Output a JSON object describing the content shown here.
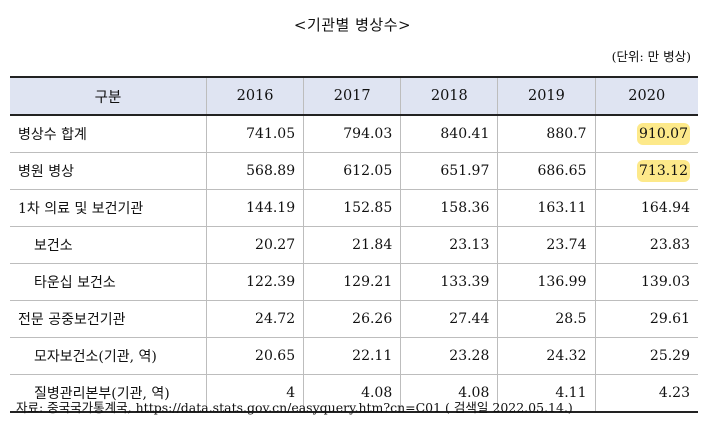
{
  "title": "<기관별 병상수>",
  "unit": "(단위: 만 병상)",
  "table": {
    "header_label": "구분",
    "years": [
      "2016",
      "2017",
      "2018",
      "2019",
      "2020"
    ],
    "rows": [
      {
        "label": "병상수 합계",
        "indent": false,
        "values": [
          "741.05",
          "794.03",
          "840.41",
          "880.7",
          "910.07"
        ],
        "highlight_last": true
      },
      {
        "label": "병원 병상",
        "indent": false,
        "values": [
          "568.89",
          "612.05",
          "651.97",
          "686.65",
          "713.12"
        ],
        "highlight_last": true
      },
      {
        "label": "1차 의료 및 보건기관",
        "indent": false,
        "values": [
          "144.19",
          "152.85",
          "158.36",
          "163.11",
          "164.94"
        ],
        "highlight_last": false
      },
      {
        "label": "보건소",
        "indent": true,
        "values": [
          "20.27",
          "21.84",
          "23.13",
          "23.74",
          "23.83"
        ],
        "highlight_last": false
      },
      {
        "label": "타운십 보건소",
        "indent": true,
        "values": [
          "122.39",
          "129.21",
          "133.39",
          "136.99",
          "139.03"
        ],
        "highlight_last": false
      },
      {
        "label": "전문 공중보건기관",
        "indent": false,
        "values": [
          "24.72",
          "26.26",
          "27.44",
          "28.5",
          "29.61"
        ],
        "highlight_last": false
      },
      {
        "label": "모자보건소(기관, 역)",
        "indent": true,
        "values": [
          "20.65",
          "22.11",
          "23.28",
          "24.32",
          "25.29"
        ],
        "highlight_last": false
      },
      {
        "label": "질병관리본부(기관, 역)",
        "indent": true,
        "values": [
          "4",
          "4.08",
          "4.08",
          "4.11",
          "4.23"
        ],
        "highlight_last": false
      }
    ]
  },
  "source": "자료: 중국국가통계국, https://data.stats.gov.cn/easyquery.htm?cn=C01 ( 검색일 2022.05.14.)",
  "colors": {
    "header_bg": "#dfe4f2",
    "highlight": "#fde98a"
  }
}
